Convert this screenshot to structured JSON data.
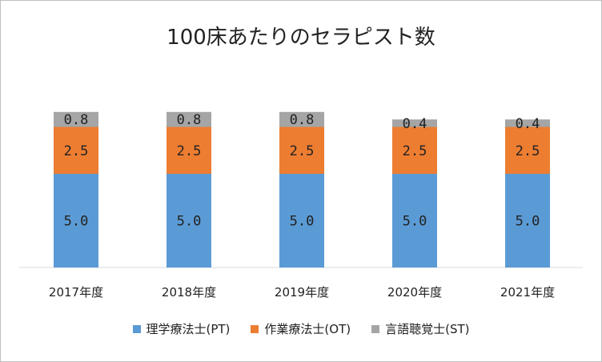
{
  "chart_data": {
    "type": "bar",
    "stacked": true,
    "title": "100床あたりのセラピスト数",
    "categories": [
      "2017年度",
      "2018年度",
      "2019年度",
      "2020年度",
      "2021年度"
    ],
    "series": [
      {
        "name": "理学療法士(PT)",
        "color": "#5b9bd5",
        "values": [
          5.0,
          5.0,
          5.0,
          5.0,
          5.0
        ],
        "labels": [
          "5.0",
          "5.0",
          "5.0",
          "5.0",
          "5.0"
        ]
      },
      {
        "name": "作業療法士(OT)",
        "color": "#ed7d31",
        "values": [
          2.5,
          2.5,
          2.5,
          2.5,
          2.5
        ],
        "labels": [
          "2.5",
          "2.5",
          "2.5",
          "2.5",
          "2.5"
        ]
      },
      {
        "name": "言語聴覚士(ST)",
        "color": "#a5a5a5",
        "values": [
          0.8,
          0.8,
          0.8,
          0.4,
          0.4
        ],
        "labels": [
          "0.8",
          "0.8",
          "0.8",
          "0.4",
          "0.4"
        ]
      }
    ],
    "ylim": [
      0,
      10
    ],
    "grid": false,
    "legend_position": "bottom"
  }
}
